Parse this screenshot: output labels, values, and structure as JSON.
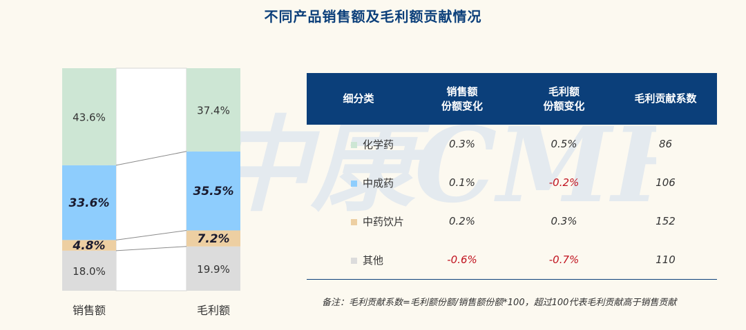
{
  "title": "不同产品销售额及毛利额贡献情况",
  "watermark_text": "中康CMH",
  "colors": {
    "化学药": "#cde6d4",
    "中成药": "#8ecdfd",
    "中药饮片": "#edcfa2",
    "其他": "#dcdcdc",
    "header_bg": "#0b3f7a",
    "negative": "#c0121e"
  },
  "chart_data": {
    "type": "bar",
    "stacked": true,
    "categories": [
      "销售额",
      "毛利额"
    ],
    "series": [
      {
        "name": "其他",
        "values": [
          18.0,
          19.9
        ],
        "labels": [
          "18.0%",
          "19.9%"
        ],
        "emphasis": false
      },
      {
        "name": "中药饮片",
        "values": [
          4.8,
          7.2
        ],
        "labels": [
          "4.8%",
          "7.2%"
        ],
        "emphasis": true
      },
      {
        "name": "中成药",
        "values": [
          33.6,
          35.5
        ],
        "labels": [
          "33.6%",
          "35.5%"
        ],
        "emphasis": true
      },
      {
        "name": "化学药",
        "values": [
          43.6,
          37.4
        ],
        "labels": [
          "43.6%",
          "37.4%"
        ],
        "emphasis": false
      }
    ],
    "ylim": [
      0,
      100
    ],
    "grid": false,
    "legend": "none"
  },
  "table": {
    "headers": [
      [
        "细分类"
      ],
      [
        "销售额",
        "份额变化"
      ],
      [
        "毛利额",
        "份额变化"
      ],
      [
        "毛利贡献系数"
      ]
    ],
    "rows": [
      {
        "category": "化学药",
        "sales_change": "0.3%",
        "profit_change": "0.5%",
        "coefficient": "86"
      },
      {
        "category": "中成药",
        "sales_change": "0.1%",
        "profit_change": "-0.2%",
        "coefficient": "106"
      },
      {
        "category": "中药饮片",
        "sales_change": "0.2%",
        "profit_change": "0.3%",
        "coefficient": "152"
      },
      {
        "category": "其他",
        "sales_change": "-0.6%",
        "profit_change": "-0.7%",
        "coefficient": "110"
      }
    ]
  },
  "note": "备注：毛利贡献系数=毛利额份额/销售额份额*100，超过100代表毛利贡献高于销售贡献"
}
